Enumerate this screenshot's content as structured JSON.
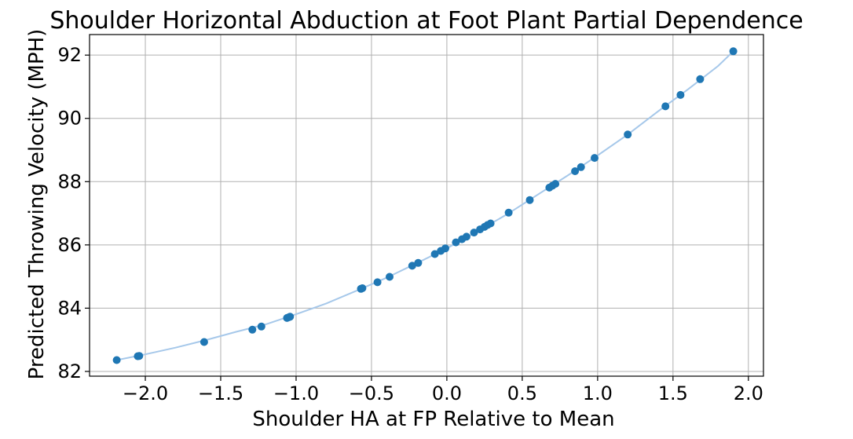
{
  "chart_data": {
    "type": "scatter",
    "title": "Shoulder Horizontal Abduction at Foot Plant Partial Dependence",
    "xlabel": "Shoulder HA at FP Relative to Mean",
    "ylabel": "Predicted Throwing Velocity (MPH)",
    "xlim": [
      -2.37,
      2.1
    ],
    "ylim": [
      81.85,
      92.65
    ],
    "xticks": [
      -2.0,
      -1.5,
      -1.0,
      -0.5,
      0.0,
      0.5,
      1.0,
      1.5,
      2.0
    ],
    "xtick_labels": [
      "−2.0",
      "−1.5",
      "−1.0",
      "−0.5",
      "0.0",
      "0.5",
      "1.0",
      "1.5",
      "2.0"
    ],
    "yticks": [
      82,
      84,
      86,
      88,
      90,
      92
    ],
    "ytick_labels": [
      "82",
      "84",
      "86",
      "88",
      "90",
      "92"
    ],
    "grid": true,
    "colors": {
      "points": "#1f77b4",
      "curve": "#a6c8ea"
    },
    "series": [
      {
        "kind": "points",
        "x": [
          -2.19,
          -2.05,
          -2.04,
          -1.61,
          -1.29,
          -1.23,
          -1.06,
          -1.05,
          -1.04,
          -0.57,
          -0.56,
          -0.46,
          -0.38,
          -0.23,
          -0.19,
          -0.08,
          -0.04,
          -0.01,
          0.06,
          0.1,
          0.13,
          0.18,
          0.22,
          0.25,
          0.27,
          0.29,
          0.41,
          0.55,
          0.68,
          0.7,
          0.72,
          0.85,
          0.89,
          0.98,
          1.2,
          1.45,
          1.55,
          1.68,
          1.9
        ],
        "y": [
          82.36,
          82.48,
          82.49,
          82.93,
          83.32,
          83.42,
          83.69,
          83.71,
          83.73,
          84.61,
          84.63,
          84.82,
          84.99,
          85.34,
          85.43,
          85.71,
          85.81,
          85.89,
          86.08,
          86.18,
          86.26,
          86.39,
          86.49,
          86.57,
          86.63,
          86.68,
          87.02,
          87.42,
          87.81,
          87.87,
          87.93,
          88.33,
          88.46,
          88.75,
          89.49,
          90.38,
          90.74,
          91.24,
          92.12
        ]
      },
      {
        "kind": "curve",
        "x": [
          -2.19,
          -2.0,
          -1.8,
          -1.6,
          -1.4,
          -1.2,
          -1.0,
          -0.8,
          -0.6,
          -0.4,
          -0.2,
          0.0,
          0.2,
          0.4,
          0.6,
          0.8,
          1.0,
          1.2,
          1.4,
          1.6,
          1.8,
          1.9
        ],
        "y": [
          82.36,
          82.54,
          82.75,
          82.99,
          83.25,
          83.49,
          83.81,
          84.15,
          84.55,
          84.96,
          85.42,
          85.89,
          86.42,
          86.97,
          87.58,
          88.19,
          88.83,
          89.49,
          90.22,
          90.92,
          91.66,
          92.12
        ]
      }
    ]
  }
}
